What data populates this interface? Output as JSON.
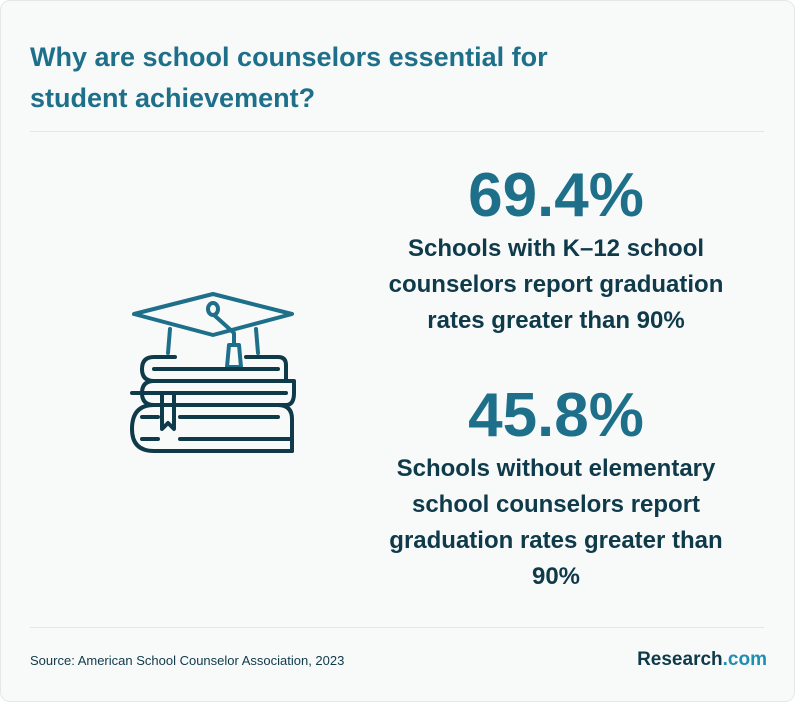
{
  "title": "Why are school counselors essential for student achievement?",
  "stats": [
    {
      "value": "69.4%",
      "description": "Schools with K–12 school counselors report graduation rates greater than 90%"
    },
    {
      "value": "45.8%",
      "description": "Schools without elementary school counselors report graduation rates greater than 90%"
    }
  ],
  "footer": {
    "source": "Source: American School Counselor Association, 2023",
    "brand_name": "Research",
    "brand_suffix": ".com"
  },
  "illustration": {
    "icon": "graduation-cap-on-books-icon"
  },
  "colors": {
    "accent": "#1e6f8a",
    "dark": "#0f3a4a",
    "background": "#f8f9f9"
  }
}
